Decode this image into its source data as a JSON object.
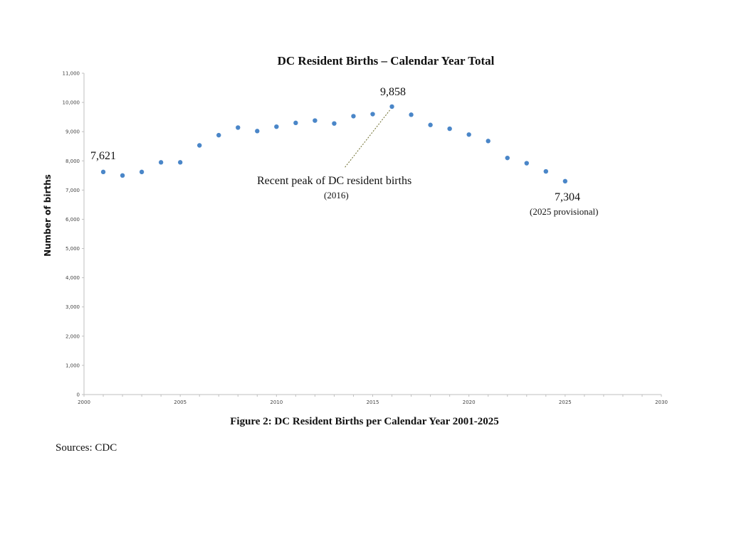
{
  "chart_data": {
    "type": "scatter",
    "title": "DC Resident Births – Calendar Year Total",
    "xlabel": "",
    "ylabel": "Number of births",
    "xlim": [
      2000,
      2030
    ],
    "ylim": [
      0,
      11000
    ],
    "x_ticks": [
      "2000",
      "2005",
      "2010",
      "2015",
      "2020",
      "2025",
      "2030"
    ],
    "y_ticks": [
      "0",
      "1,000",
      "2,000",
      "3,000",
      "4,000",
      "5,000",
      "6,000",
      "7,000",
      "8,000",
      "9,000",
      "10,000",
      "11,000"
    ],
    "grid": false,
    "marker_color": "#4a86c8",
    "x": [
      2001,
      2002,
      2003,
      2004,
      2005,
      2006,
      2007,
      2008,
      2009,
      2010,
      2011,
      2012,
      2013,
      2014,
      2015,
      2016,
      2017,
      2018,
      2019,
      2020,
      2021,
      2022,
      2023,
      2024,
      2025
    ],
    "y": [
      7621,
      7500,
      7620,
      7950,
      7950,
      8530,
      8880,
      9140,
      9020,
      9170,
      9300,
      9380,
      9280,
      9530,
      9600,
      9858,
      9580,
      9230,
      9100,
      8900,
      8680,
      8100,
      7920,
      7640,
      7304
    ],
    "annotations": {
      "first_value": "7,621",
      "peak_value": "9,858",
      "peak_note": "Recent peak of DC resident births",
      "peak_note_year": "(2016)",
      "last_value": "7,304",
      "last_note": "(2025 provisional)"
    }
  },
  "caption": "Figure 2: DC Resident Births per Calendar Year 2001-2025",
  "sources": "Sources: CDC"
}
